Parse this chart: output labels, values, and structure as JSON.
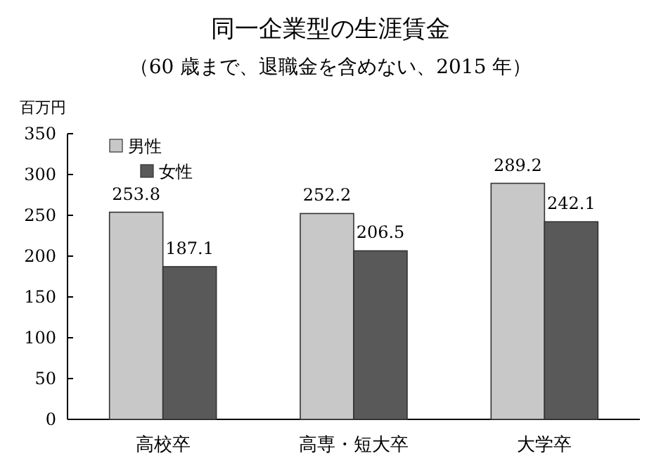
{
  "chart_data": {
    "type": "bar",
    "title": "同一企業型の生涯賃金",
    "subtitle": "（60 歳まで、退職金を含めない、2015 年）",
    "ylabel": "百万円",
    "categories": [
      "高校卒",
      "高専・短大卒",
      "大学卒"
    ],
    "series": [
      {
        "name": "男性",
        "color": "#c8c8c8",
        "values": [
          253.8,
          252.2,
          289.2
        ]
      },
      {
        "name": "女性",
        "color": "#595959",
        "values": [
          187.1,
          206.5,
          242.1
        ]
      }
    ],
    "legend": "top left",
    "ylim": [
      0,
      350
    ],
    "yticks": [
      0,
      50,
      100,
      150,
      200,
      250,
      300,
      350
    ],
    "data_labels": true
  }
}
